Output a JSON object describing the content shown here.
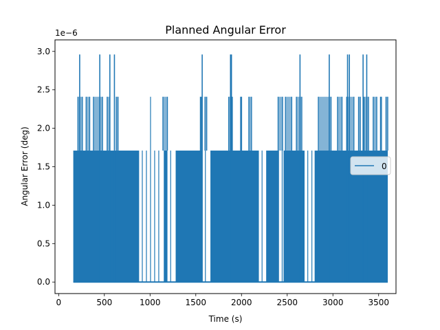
{
  "chart_data": {
    "type": "line",
    "title": "Planned Angular Error",
    "xlabel": "Time (s)",
    "ylabel": "Angular Error (deg)",
    "y_scale_label": "1e−6",
    "xlim": [
      -40,
      3690
    ],
    "ylim": [
      -1.5e-07,
      3.15e-06
    ],
    "xticks": [
      0,
      500,
      1000,
      1500,
      2000,
      2500,
      3000,
      3500
    ],
    "yticks": [
      0.0,
      0.5,
      1.0,
      1.5,
      2.0,
      2.5,
      3.0
    ],
    "ytick_labels": [
      "0.0",
      "0.5",
      "1.0",
      "1.5",
      "2.0",
      "2.5",
      "3.0"
    ],
    "grid": false,
    "legend_position": "center-right",
    "line_color": "#1f77b4",
    "x_range": [
      160,
      3600
    ],
    "levels": [
      0,
      1.71e-06,
      2.41e-06,
      2.96e-06
    ],
    "gaps": [
      [
        890,
        1140
      ],
      [
        1200,
        1270
      ],
      [
        1580,
        1650
      ],
      [
        2200,
        2260
      ],
      [
        2420,
        2450
      ],
      [
        2700,
        2790
      ]
    ],
    "series": [
      {
        "name": "0",
        "peaks_2_96e-6": [
          230,
          450,
          560,
          610,
          1570,
          1880,
          1890,
          2640,
          2960,
          3160,
          3180,
          3330,
          3370
        ],
        "cluster_2_41e-6": [
          [
            210,
            260
          ],
          [
            300,
            340
          ],
          [
            380,
            480
          ],
          [
            530,
            560
          ],
          [
            630,
            650
          ],
          [
            1140,
            1190
          ],
          [
            1550,
            1560
          ],
          [
            1600,
            1620
          ],
          [
            1860,
            1900
          ],
          [
            1990,
            2000
          ],
          [
            2080,
            2110
          ],
          [
            2400,
            2450
          ],
          [
            2480,
            2550
          ],
          [
            2600,
            2660
          ],
          [
            2840,
            2980
          ],
          [
            3050,
            3100
          ],
          [
            3150,
            3230
          ],
          [
            3280,
            3300
          ],
          [
            3340,
            3390
          ],
          [
            3440,
            3480
          ],
          [
            3520,
            3530
          ],
          [
            3580,
            3600
          ]
        ]
      }
    ]
  }
}
